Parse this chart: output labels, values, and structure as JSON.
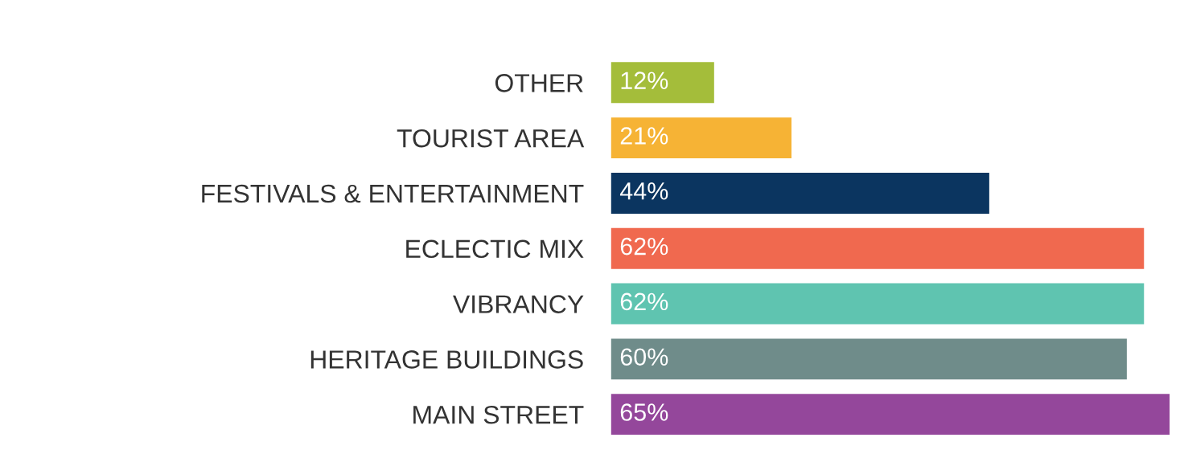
{
  "chart_data": {
    "type": "bar",
    "orientation": "horizontal",
    "categories": [
      "OTHER",
      "TOURIST AREA",
      "FESTIVALS & ENTERTAINMENT",
      "ECLECTIC MIX",
      "VIBRANCY",
      "HERITAGE BUILDINGS",
      "MAIN STREET"
    ],
    "values": [
      12,
      21,
      44,
      62,
      62,
      60,
      65
    ],
    "value_labels": [
      "12%",
      "21%",
      "44%",
      "62%",
      "62%",
      "60%",
      "65%"
    ],
    "colors": [
      "#a4bd3a",
      "#f6b335",
      "#0b3560",
      "#f0694f",
      "#5fc4b0",
      "#6f8c8a",
      "#94479b"
    ],
    "grid": false,
    "legend": false
  }
}
